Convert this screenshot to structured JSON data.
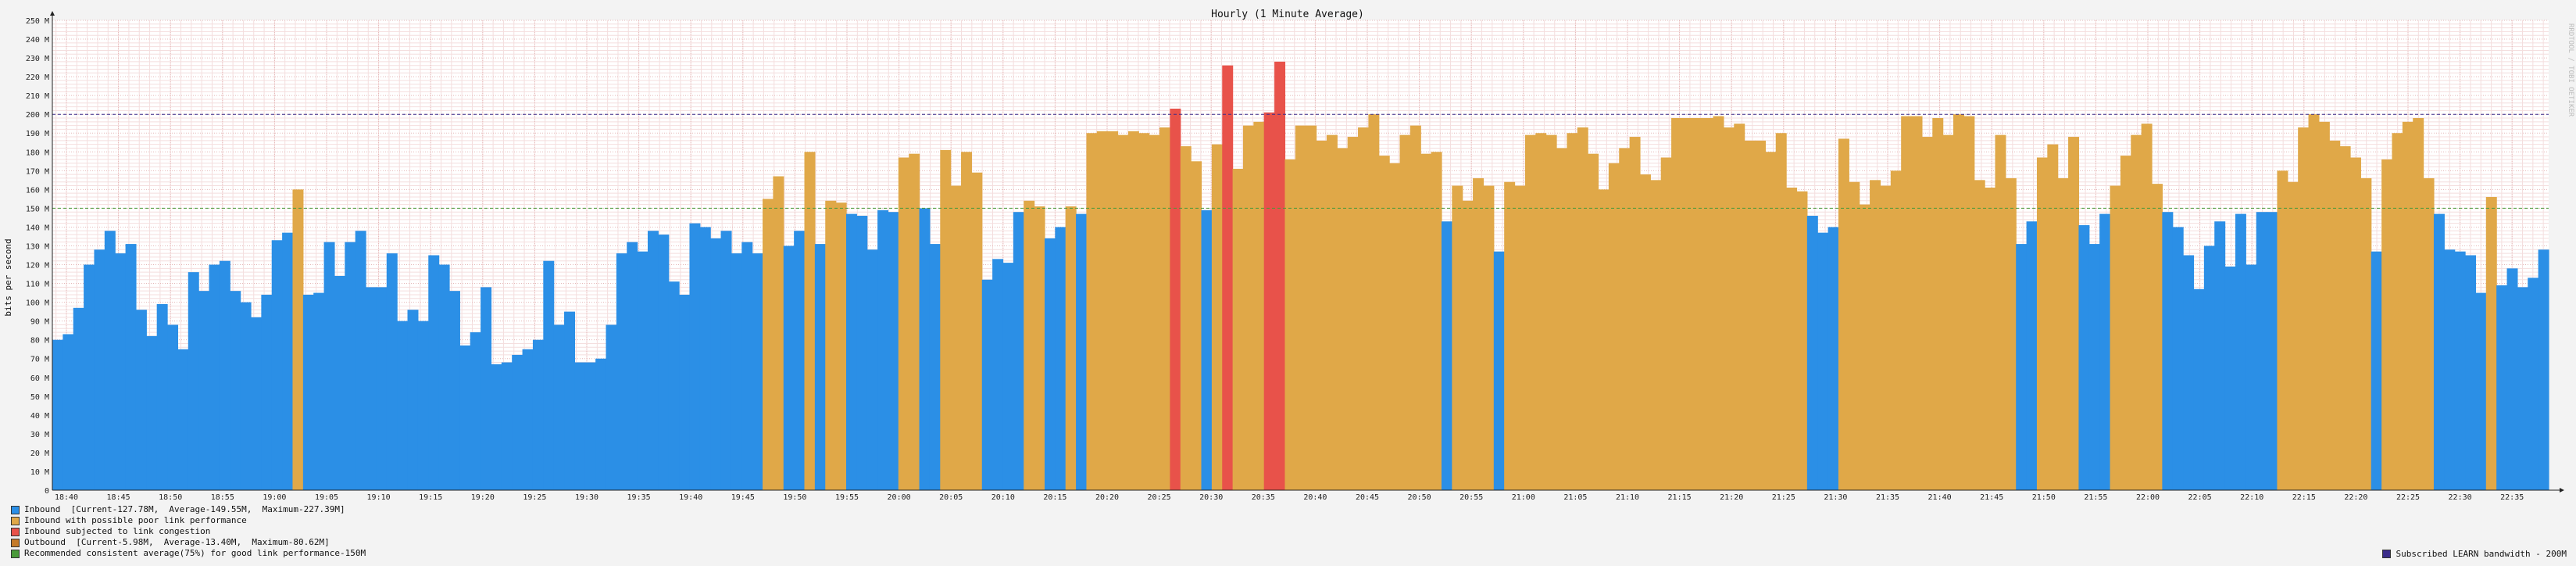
{
  "chart_data": {
    "type": "bar",
    "title": "Hourly (1 Minute Average)",
    "ylabel": "bits per second",
    "xlabel": "",
    "ylim": [
      0,
      250
    ],
    "y_ticks": [
      "0",
      "10 M",
      "20 M",
      "30 M",
      "40 M",
      "50 M",
      "60 M",
      "70 M",
      "80 M",
      "90 M",
      "100 M",
      "110 M",
      "120 M",
      "130 M",
      "140 M",
      "150 M",
      "160 M",
      "170 M",
      "180 M",
      "190 M",
      "200 M",
      "210 M",
      "220 M",
      "230 M",
      "240 M",
      "250 M"
    ],
    "x_ticks": [
      "18:40",
      "18:45",
      "18:50",
      "18:55",
      "19:00",
      "19:05",
      "19:10",
      "19:15",
      "19:20",
      "19:25",
      "19:30",
      "19:35",
      "19:40",
      "19:45",
      "19:50",
      "19:55",
      "20:00",
      "20:05",
      "20:10",
      "20:15",
      "20:20",
      "20:25",
      "20:30",
      "20:35",
      "20:40",
      "20:45",
      "20:50",
      "20:55",
      "21:00",
      "21:05",
      "21:10",
      "21:15",
      "21:20",
      "21:25",
      "21:30",
      "21:35",
      "21:40",
      "21:45",
      "21:50",
      "21:55",
      "22:00",
      "22:05",
      "22:10",
      "22:15",
      "22:20",
      "22:25",
      "22:30",
      "22:35"
    ],
    "series": [
      {
        "name": "Inbound",
        "color": "#2b8fe6",
        "values": [
          80,
          83,
          97,
          120,
          128,
          138,
          126,
          131,
          96,
          82,
          99,
          88,
          75,
          116,
          106,
          120,
          122,
          106,
          100,
          92,
          104,
          133,
          137,
          160,
          104,
          105,
          132,
          114,
          132,
          138,
          108,
          108,
          126,
          90,
          96,
          90,
          125,
          120,
          106,
          77,
          84,
          108,
          67,
          68,
          72,
          75,
          80,
          122,
          88,
          95,
          68,
          68,
          70,
          88,
          126,
          132,
          127,
          138,
          136,
          111,
          104,
          142,
          140,
          134,
          138,
          126,
          132,
          126,
          155,
          167,
          130,
          138,
          180,
          131,
          154,
          153,
          147,
          146,
          128,
          149,
          148,
          177,
          179,
          150,
          131,
          181,
          162,
          180,
          169,
          112,
          123,
          121,
          148,
          154,
          151,
          134,
          140,
          151,
          147,
          190,
          191,
          191,
          189,
          191,
          190,
          189,
          193,
          203,
          183,
          175,
          149,
          184,
          226,
          171,
          194,
          196,
          201,
          228,
          176,
          194,
          194,
          186,
          189,
          182,
          188,
          193,
          200,
          178,
          174,
          189,
          194,
          179,
          180,
          143,
          162,
          154,
          166,
          162,
          127,
          164,
          162,
          189,
          190,
          189,
          182,
          190,
          193,
          179,
          160,
          174,
          182,
          188,
          168,
          165,
          177,
          198,
          198,
          198,
          198,
          199,
          193,
          195,
          186,
          186,
          180,
          190,
          161,
          159,
          146,
          137,
          140,
          187,
          164,
          152,
          165,
          162,
          170,
          199,
          199,
          188,
          198,
          189,
          200,
          199,
          165,
          161,
          189,
          166,
          131,
          143,
          177,
          184,
          166,
          188,
          141,
          131,
          147,
          162,
          178,
          189,
          195,
          163,
          148,
          140,
          125,
          107,
          130,
          143,
          119,
          147,
          120,
          148,
          148,
          170,
          164,
          193,
          200,
          196,
          186,
          183,
          177,
          166,
          127,
          176,
          190,
          196,
          198,
          166,
          147,
          128,
          127,
          125,
          105,
          156,
          109,
          118,
          108,
          113,
          128
        ]
      },
      {
        "name": "Inbound with possible poor link performance",
        "color": "#e0a848"
      },
      {
        "name": "Inbound subjected to link congestion",
        "color": "#e8524a"
      },
      {
        "name": "Outbound",
        "color": "#c47a2a"
      }
    ],
    "thresholds": [
      {
        "name": "Subscribed LEARN bandwidth",
        "value": 200,
        "color": "#3a2c8a"
      },
      {
        "name": "Recommended consistent average(75%) for good link performance",
        "value": 150,
        "color": "#4a9a3a"
      }
    ],
    "color_rule": {
      "poor_link_above": 150,
      "congestion_above": 200
    }
  },
  "legend": {
    "inbound_label": "Inbound  [Current-127.78M,  Average-149.55M,  Maximum-227.39M]",
    "poor_label": "Inbound with possible poor link performance",
    "congestion_label": "Inbound subjected to link congestion",
    "outbound_label": "Outbound  [Current-5.98M,  Average-13.40M,  Maximum-80.62M]",
    "recommended_label": "Recommended consistent average(75%) for good link performance-150M",
    "subscribed_label": "Subscribed LEARN bandwidth - 200M",
    "colors": {
      "inbound": "#2b8fe6",
      "poor": "#e0a848",
      "congestion": "#e8524a",
      "outbound": "#c47a2a",
      "recommended": "#4a9a3a",
      "subscribed": "#3a2c8a"
    }
  },
  "watermark": "RRDTOOL / TOBI OETIKER"
}
